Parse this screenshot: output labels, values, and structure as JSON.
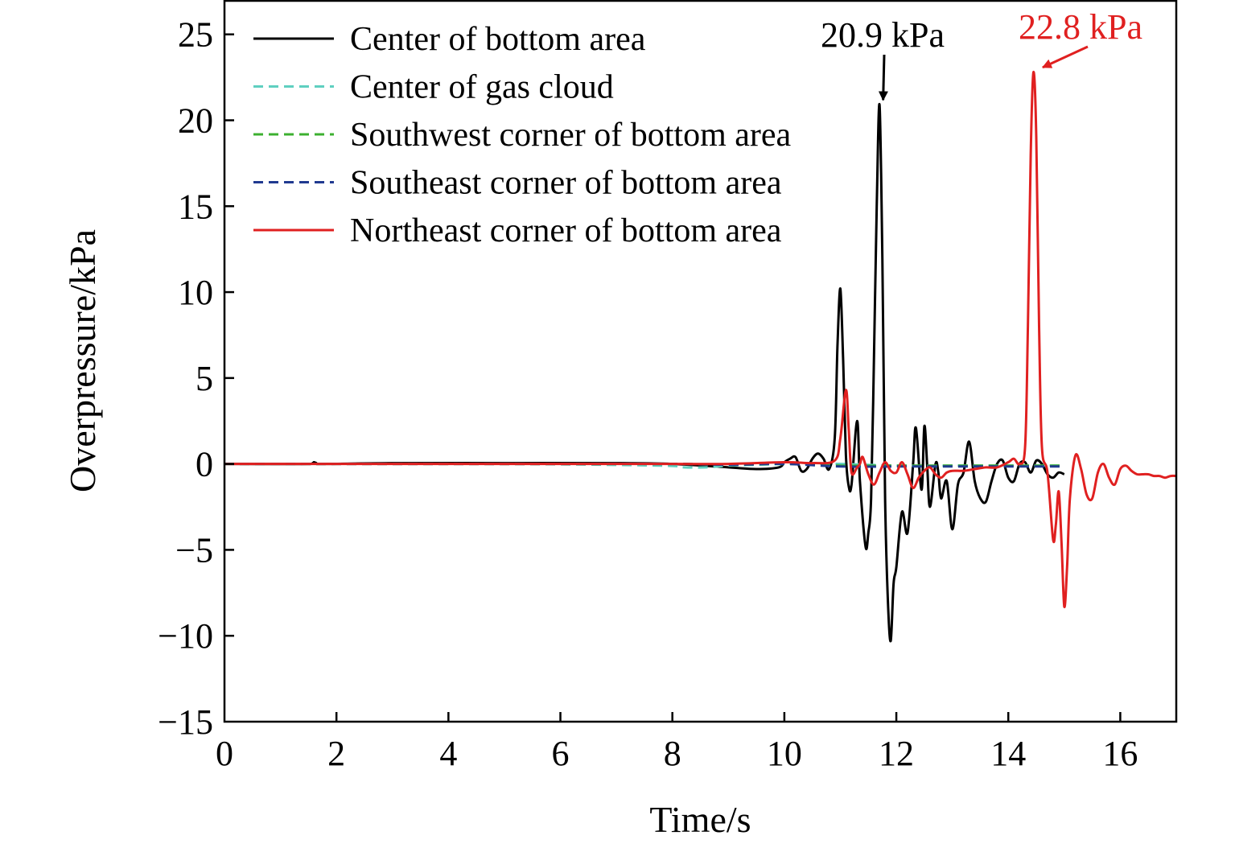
{
  "chart_data": {
    "type": "line",
    "title": "",
    "xlabel": "Time/s",
    "ylabel": "Overpressure/kPa",
    "xlim": [
      0,
      17
    ],
    "ylim": [
      -15,
      27
    ],
    "x_ticks": [
      0,
      2,
      4,
      6,
      8,
      10,
      12,
      14,
      16
    ],
    "y_ticks": [
      -15,
      -10,
      -5,
      0,
      5,
      10,
      15,
      20,
      25
    ],
    "x_tick_labels": [
      "0",
      "2",
      "4",
      "6",
      "8",
      "10",
      "12",
      "14",
      "16"
    ],
    "y_tick_labels": [
      "−15",
      "−10",
      "−5",
      "0",
      "5",
      "10",
      "15",
      "20",
      "25"
    ],
    "legend_position": "top-left",
    "series": [
      {
        "name": "Center of bottom area",
        "color": "#000000",
        "dash": "solid",
        "x": [
          0,
          1.5,
          1.6,
          1.7,
          3,
          5,
          7,
          8,
          9,
          9.5,
          9.9,
          10.0,
          10.1,
          10.2,
          10.3,
          10.4,
          10.5,
          10.6,
          10.7,
          10.8,
          10.9,
          10.95,
          11.0,
          11.05,
          11.1,
          11.15,
          11.2,
          11.3,
          11.35,
          11.45,
          11.5,
          11.55,
          11.6,
          11.65,
          11.7,
          11.75,
          11.8,
          11.85,
          11.9,
          11.95,
          12.0,
          12.1,
          12.2,
          12.3,
          12.35,
          12.45,
          12.5,
          12.55,
          12.6,
          12.7,
          12.75,
          12.8,
          12.9,
          13.0,
          13.1,
          13.2,
          13.3,
          13.4,
          13.5,
          13.6,
          13.7,
          13.8,
          13.9,
          14.0,
          14.1,
          14.2,
          14.3,
          14.4,
          14.5,
          14.6,
          14.7,
          14.8,
          14.9,
          15.0
        ],
        "values": [
          0,
          0,
          0.1,
          0,
          0.05,
          0.05,
          0.05,
          0,
          -0.2,
          -0.3,
          -0.2,
          0.1,
          0.3,
          0.4,
          -0.4,
          -0.3,
          0.3,
          0.6,
          0.3,
          -0.3,
          1.5,
          7,
          10.2,
          6,
          0.5,
          -1.3,
          -1.2,
          2.5,
          -1,
          -4.8,
          -4,
          -2,
          6,
          15,
          20.9,
          12,
          -2,
          -8,
          -10.3,
          -7,
          -6,
          -2.8,
          -4,
          0,
          2.1,
          -1.5,
          2.2,
          0,
          -2.5,
          0,
          -0.5,
          -2,
          -1,
          -3.8,
          -1.2,
          -0.5,
          1.3,
          -1,
          -2,
          -2.2,
          -1,
          0,
          0.2,
          -0.8,
          -1,
          0,
          0.1,
          -0.5,
          0.2,
          0,
          -0.6,
          -0.8,
          -0.5,
          -0.6
        ]
      },
      {
        "name": "Center of gas cloud",
        "color": "#5fd0c0",
        "dash": "dashed",
        "x": [
          0,
          5,
          7.8,
          8.2,
          8.6,
          9.0,
          9.5,
          10,
          11,
          12,
          13,
          14,
          15
        ],
        "values": [
          0,
          0,
          -0.1,
          -0.2,
          -0.2,
          -0.1,
          -0.05,
          0,
          0,
          -0.1,
          -0.1,
          -0.1,
          -0.1
        ]
      },
      {
        "name": "Southwest corner of bottom area",
        "color": "#3cb030",
        "dash": "dashed",
        "x": [
          0,
          5,
          8,
          9,
          10,
          11,
          12,
          13,
          14,
          15
        ],
        "values": [
          0,
          0,
          0,
          -0.05,
          0,
          -0.1,
          -0.1,
          -0.1,
          -0.1,
          -0.1
        ]
      },
      {
        "name": "Southeast corner of bottom area",
        "color": "#203a90",
        "dash": "dashed",
        "x": [
          0,
          5,
          8,
          9,
          10,
          11,
          12,
          13,
          14,
          15
        ],
        "values": [
          0,
          0,
          0,
          -0.05,
          0,
          -0.15,
          -0.15,
          -0.15,
          -0.15,
          -0.15
        ]
      },
      {
        "name": "Northeast corner of bottom area",
        "color": "#e02020",
        "dash": "solid",
        "x": [
          0,
          2,
          4,
          6,
          8,
          9,
          10,
          10.5,
          10.9,
          11.0,
          11.1,
          11.15,
          11.2,
          11.3,
          11.35,
          11.4,
          11.5,
          11.6,
          11.7,
          11.8,
          11.9,
          12.0,
          12.1,
          12.2,
          12.3,
          12.4,
          12.5,
          12.6,
          12.7,
          12.8,
          12.9,
          13.0,
          13.2,
          13.4,
          13.6,
          13.8,
          14.0,
          14.1,
          14.2,
          14.3,
          14.35,
          14.4,
          14.45,
          14.5,
          14.55,
          14.6,
          14.7,
          14.8,
          14.85,
          14.9,
          14.95,
          15.0,
          15.05,
          15.1,
          15.2,
          15.3,
          15.4,
          15.5,
          15.6,
          15.7,
          15.8,
          15.9,
          16.0,
          16.1,
          16.2,
          16.3,
          16.4,
          16.5,
          16.6,
          16.7,
          16.8,
          16.9,
          17.0
        ],
        "values": [
          0,
          0,
          0,
          0,
          0,
          0,
          0.1,
          0.05,
          0.2,
          1.5,
          4.3,
          2,
          -0.5,
          -0.2,
          0,
          0.4,
          -0.6,
          -1.2,
          -0.5,
          0.1,
          -0.4,
          -0.5,
          0.1,
          -0.6,
          -1.4,
          -0.8,
          -0.4,
          -0.2,
          -0.6,
          -0.8,
          -0.5,
          -0.4,
          -0.4,
          -0.3,
          -0.2,
          -0.2,
          0.1,
          0.3,
          0,
          1,
          8,
          18,
          22.8,
          19,
          8,
          1,
          -0.5,
          -4.4,
          -3.5,
          -1.6,
          -4.5,
          -8.3,
          -6,
          -2,
          0.5,
          -0.3,
          -1.8,
          -2,
          -0.5,
          0,
          -0.8,
          -1.2,
          -0.3,
          -0.1,
          -0.4,
          -0.6,
          -0.6,
          -0.6,
          -0.7,
          -0.7,
          -0.8,
          -0.7,
          -0.7
        ]
      }
    ],
    "annotations": [
      {
        "text": "20.9 kPa",
        "x": 11.75,
        "y": 20.9,
        "color": "#000000"
      },
      {
        "text": "22.8 kPa",
        "x": 14.5,
        "y": 22.8,
        "color": "#e02020"
      }
    ]
  }
}
